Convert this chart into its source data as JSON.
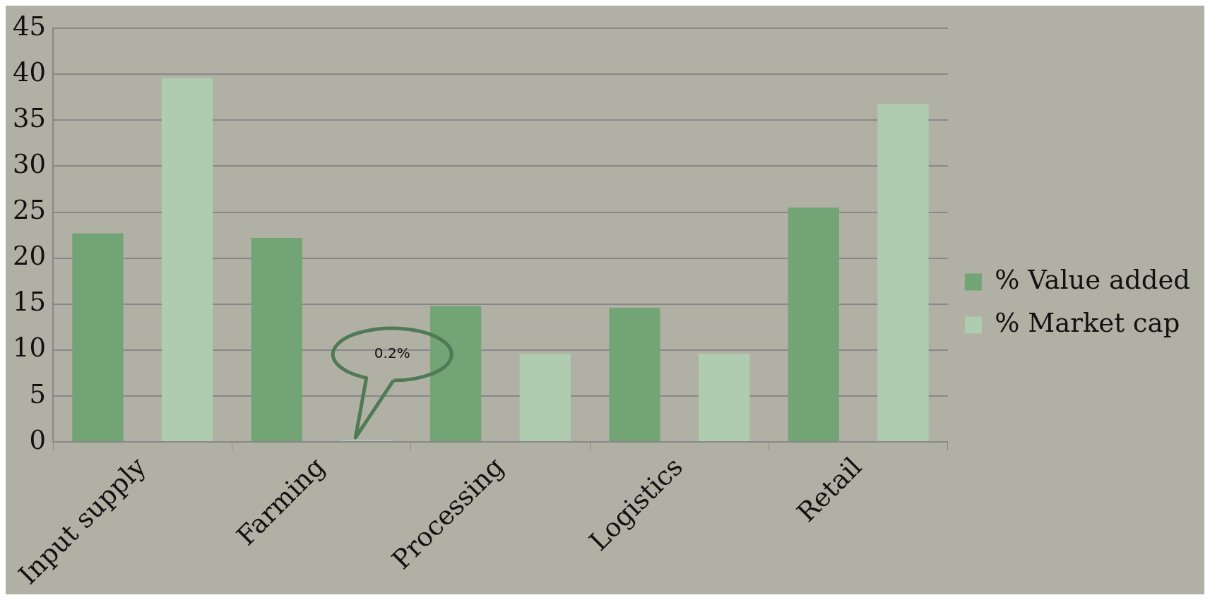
{
  "chart_data": {
    "type": "bar",
    "categories": [
      "Input supply",
      "Farming",
      "Processing",
      "Logistics",
      "Retail"
    ],
    "series": [
      {
        "name": "% Value added",
        "color": "#72a476",
        "values": [
          22.7,
          22.2,
          14.8,
          14.6,
          25.5
        ]
      },
      {
        "name": "% Market cap",
        "color": "#afcbb0",
        "values": [
          39.6,
          0.2,
          9.6,
          9.6,
          36.8
        ]
      }
    ],
    "ylim": [
      0,
      45
    ],
    "yticks": [
      0,
      5,
      10,
      15,
      20,
      25,
      30,
      35,
      40,
      45
    ],
    "grid": "y",
    "legend": "right",
    "annotations": [
      "0.2%"
    ]
  }
}
